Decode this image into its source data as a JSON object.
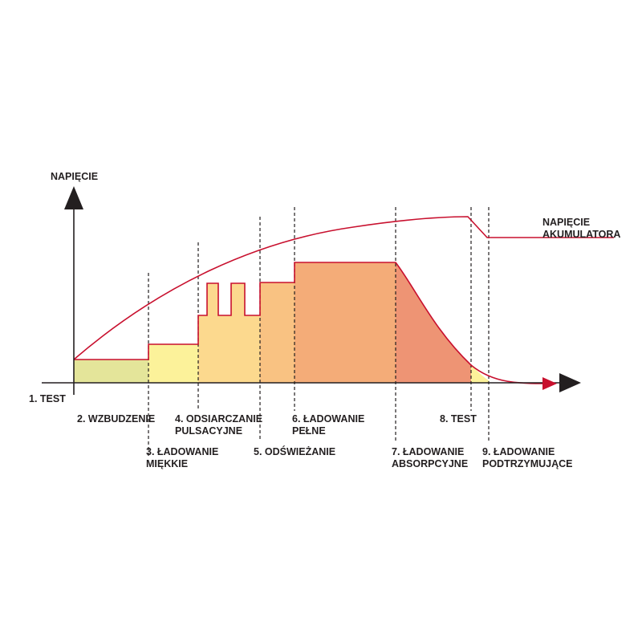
{
  "y_axis_label": "NAPIĘCIE",
  "battery_voltage_label": [
    "NAPIĘCIE",
    "AKUMULATORA"
  ],
  "stages": [
    {
      "id": "stage-1-test",
      "lines": [
        "1. TEST"
      ]
    },
    {
      "id": "stage-2-excitation",
      "lines": [
        "2. WZBUDZENIE"
      ]
    },
    {
      "id": "stage-3-soft",
      "lines": [
        "3. ŁADOWANIE",
        "MIĘKKIE"
      ]
    },
    {
      "id": "stage-4-desulfation",
      "lines": [
        "4. ODSIARCZANIE",
        "PULSACYJNE"
      ]
    },
    {
      "id": "stage-5-refresh",
      "lines": [
        "5. ODŚWIEŻANIE"
      ]
    },
    {
      "id": "stage-6-full",
      "lines": [
        "6. ŁADOWANIE",
        "PEŁNE"
      ]
    },
    {
      "id": "stage-7-absorption",
      "lines": [
        "7. ŁADOWANIE",
        "ABSORPCYJNE"
      ]
    },
    {
      "id": "stage-8-test",
      "lines": [
        "8. TEST"
      ]
    },
    {
      "id": "stage-9-float",
      "lines": [
        "9. ŁADOWANIE",
        "PODTRZYMUJĄCE"
      ]
    }
  ],
  "colors": {
    "axis": "#231f20",
    "voltage_curve": "#c8102e",
    "stage_2_fill": "#e4e59a",
    "stage_3_fill": "#fcf29a",
    "stage_4_fill": "#fcd98e",
    "stage_5_fill": "#f9c282",
    "stage_6_fill": "#f4ac78",
    "stage_7_fill": "#ee9474",
    "stage_8_fill": "#fcf29a"
  }
}
